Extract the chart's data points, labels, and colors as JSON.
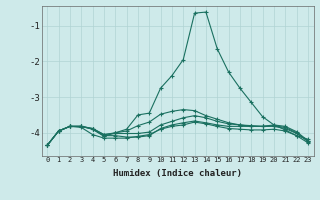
{
  "xlabel": "Humidex (Indice chaleur)",
  "ylabel": "",
  "background_color": "#ceeaea",
  "grid_color": "#b0d4d4",
  "line_color": "#1a7060",
  "xlim": [
    -0.5,
    23.5
  ],
  "ylim": [
    -4.65,
    -0.45
  ],
  "yticks": [
    -4,
    -3,
    -2,
    -1
  ],
  "xticks": [
    0,
    1,
    2,
    3,
    4,
    5,
    6,
    7,
    8,
    9,
    10,
    11,
    12,
    13,
    14,
    15,
    16,
    17,
    18,
    19,
    20,
    21,
    22,
    23
  ],
  "lines": [
    {
      "x": [
        0,
        1,
        2,
        3,
        4,
        5,
        6,
        7,
        8,
        9,
        10,
        11,
        12,
        13,
        14,
        15,
        16,
        17,
        18,
        19,
        20,
        21,
        22,
        23
      ],
      "y": [
        -4.35,
        -3.95,
        -3.82,
        -3.82,
        -3.9,
        -4.1,
        -4.0,
        -3.9,
        -3.5,
        -3.45,
        -2.75,
        -2.4,
        -1.95,
        -0.65,
        -0.62,
        -1.65,
        -2.3,
        -2.75,
        -3.15,
        -3.55,
        -3.78,
        -3.92,
        -4.08,
        -4.18
      ]
    },
    {
      "x": [
        0,
        1,
        2,
        3,
        4,
        5,
        6,
        7,
        8,
        9,
        10,
        11,
        12,
        13,
        14,
        15,
        16,
        17,
        18,
        19,
        20,
        21,
        22,
        23
      ],
      "y": [
        -4.35,
        -3.95,
        -3.82,
        -3.85,
        -4.05,
        -4.15,
        -4.15,
        -4.15,
        -4.1,
        -4.05,
        -3.9,
        -3.82,
        -3.78,
        -3.7,
        -3.75,
        -3.82,
        -3.88,
        -3.9,
        -3.92,
        -3.92,
        -3.9,
        -3.95,
        -4.08,
        -4.28
      ]
    },
    {
      "x": [
        0,
        1,
        2,
        3,
        4,
        5,
        6,
        7,
        8,
        9,
        10,
        11,
        12,
        13,
        14,
        15,
        16,
        17,
        18,
        19,
        20,
        21,
        22,
        23
      ],
      "y": [
        -4.35,
        -3.95,
        -3.82,
        -3.82,
        -3.88,
        -4.05,
        -4.0,
        -3.95,
        -3.8,
        -3.7,
        -3.48,
        -3.4,
        -3.35,
        -3.38,
        -3.52,
        -3.62,
        -3.72,
        -3.78,
        -3.82,
        -3.82,
        -3.82,
        -3.88,
        -4.02,
        -4.22
      ]
    },
    {
      "x": [
        0,
        1,
        2,
        3,
        4,
        5,
        6,
        7,
        8,
        9,
        10,
        11,
        12,
        13,
        14,
        15,
        16,
        17,
        18,
        19,
        20,
        21,
        22,
        23
      ],
      "y": [
        -4.35,
        -3.95,
        -3.82,
        -3.82,
        -3.9,
        -4.08,
        -4.08,
        -4.12,
        -4.12,
        -4.08,
        -3.88,
        -3.78,
        -3.72,
        -3.67,
        -3.72,
        -3.78,
        -3.82,
        -3.82,
        -3.82,
        -3.82,
        -3.78,
        -3.82,
        -3.97,
        -4.22
      ]
    },
    {
      "x": [
        0,
        1,
        2,
        3,
        4,
        5,
        6,
        7,
        8,
        9,
        10,
        11,
        12,
        13,
        14,
        15,
        16,
        17,
        18,
        19,
        20,
        21,
        22,
        23
      ],
      "y": [
        -4.35,
        -3.95,
        -3.82,
        -3.82,
        -3.88,
        -4.05,
        -4.02,
        -4.02,
        -4.02,
        -3.98,
        -3.78,
        -3.68,
        -3.58,
        -3.52,
        -3.58,
        -3.68,
        -3.75,
        -3.78,
        -3.8,
        -3.82,
        -3.8,
        -3.85,
        -4.0,
        -4.25
      ]
    }
  ]
}
